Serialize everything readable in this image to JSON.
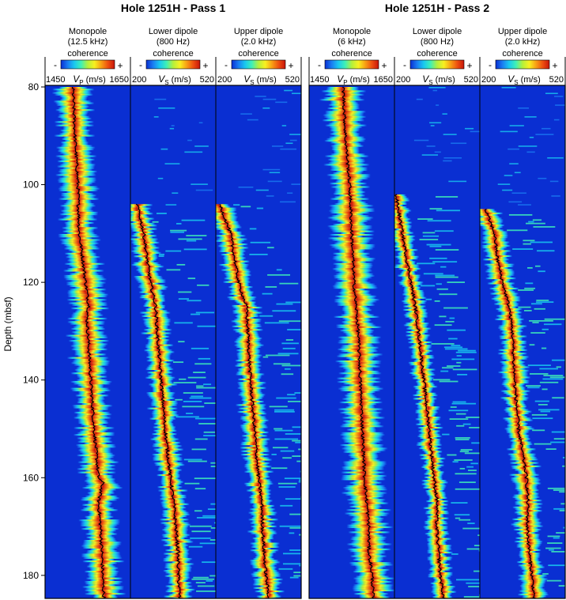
{
  "colors": {
    "background": "#0a2fd2",
    "cold": "#0a2fd2",
    "hot": "#c8140a",
    "velocity_line": "#000000"
  },
  "colormap": [
    "#0a2fd2",
    "#1a7cf2",
    "#19c8f0",
    "#3ef0b8",
    "#b4f03c",
    "#f8f020",
    "#f8a014",
    "#ee5010",
    "#c8140a"
  ],
  "y_axis": {
    "label": "Depth (mbsf)",
    "ticks": [
      80,
      100,
      120,
      140,
      160,
      180
    ],
    "range": [
      80,
      185
    ]
  },
  "groups": [
    {
      "title": "Hole 1251H - Pass 1",
      "tracks": [
        {
          "name_line1": "Monopole",
          "name_line2": "(12.5 kHz)",
          "legend_label": "coherence",
          "minus": "-",
          "plus": "+",
          "axis_min": "1450",
          "axis_var": "V",
          "axis_sub": "P",
          "axis_unit": "(m/s)",
          "axis_max": "1650"
        },
        {
          "name_line1": "Lower dipole",
          "name_line2": "(800 Hz)",
          "legend_label": "coherence",
          "minus": "-",
          "plus": "+",
          "axis_min": "200",
          "axis_var": "V",
          "axis_sub": "S",
          "axis_unit": "(m/s)",
          "axis_max": "520"
        },
        {
          "name_line1": "Upper dipole",
          "name_line2": "(2.0 kHz)",
          "legend_label": "coherence",
          "minus": "-",
          "plus": "+",
          "axis_min": "200",
          "axis_var": "V",
          "axis_sub": "S",
          "axis_unit": "(m/s)",
          "axis_max": "520"
        }
      ]
    },
    {
      "title": "Hole 1251H - Pass 2",
      "tracks": [
        {
          "name_line1": "Monopole",
          "name_line2": "(6 kHz)",
          "legend_label": "coherence",
          "minus": "-",
          "plus": "+",
          "axis_min": "1450",
          "axis_var": "V",
          "axis_sub": "P",
          "axis_unit": "(m/s)",
          "axis_max": "1650"
        },
        {
          "name_line1": "Lower dipole",
          "name_line2": "(800 Hz)",
          "legend_label": "coherence",
          "minus": "-",
          "plus": "+",
          "axis_min": "200",
          "axis_var": "V",
          "axis_sub": "S",
          "axis_unit": "(m/s)",
          "axis_max": "520"
        },
        {
          "name_line1": "Upper dipole",
          "name_line2": "(2.0 kHz)",
          "legend_label": "coherence",
          "minus": "-",
          "plus": "+",
          "axis_min": "200",
          "axis_var": "V",
          "axis_sub": "S",
          "axis_unit": "(m/s)",
          "axis_max": "520"
        }
      ]
    }
  ],
  "chart_data": {
    "type": "heatmap",
    "description_kind": "sonic waveform coherence logs with picked velocity curves",
    "ylabel": "Depth (mbsf)",
    "ylim": [
      80,
      185
    ],
    "y_inverted": true,
    "tracks": [
      {
        "group": "Hole 1251H - Pass 1",
        "name": "Monopole (12.5 kHz)",
        "xlabel": "VP (m/s)",
        "xlim": [
          1450,
          1650
        ],
        "velocity_curve": {
          "depth": [
            80,
            90,
            100,
            110,
            113,
            120,
            125,
            127,
            130,
            140,
            150,
            160,
            161,
            165,
            170,
            175,
            180,
            185
          ],
          "velocity": [
            1515,
            1520,
            1527,
            1530,
            1535,
            1545,
            1553,
            1548,
            1550,
            1557,
            1565,
            1575,
            1585,
            1575,
            1580,
            1583,
            1585,
            1588
          ]
        },
        "coherence_band_halfwidth": 38
      },
      {
        "group": "Hole 1251H - Pass 1",
        "name": "Lower dipole (800 Hz)",
        "xlabel": "VS (m/s)",
        "xlim": [
          200,
          520
        ],
        "velocity_curve": {
          "depth": [
            104,
            110,
            115,
            120,
            125,
            130,
            140,
            150,
            160,
            165,
            170,
            175,
            180,
            185
          ],
          "velocity": [
            225,
            250,
            262,
            275,
            295,
            300,
            315,
            330,
            350,
            362,
            370,
            378,
            380,
            385
          ]
        },
        "coherence_band_halfwidth": 45
      },
      {
        "group": "Hole 1251H - Pass 1",
        "name": "Upper dipole (2.0 kHz)",
        "xlabel": "VS (m/s)",
        "xlim": [
          200,
          520
        ],
        "velocity_curve": {
          "depth": [
            104,
            110,
            115,
            120,
            125,
            130,
            140,
            150,
            160,
            165,
            170,
            175,
            180,
            185
          ],
          "velocity": [
            215,
            255,
            270,
            285,
            315,
            320,
            330,
            345,
            360,
            372,
            375,
            380,
            388,
            400
          ]
        },
        "coherence_band_halfwidth": 45
      },
      {
        "group": "Hole 1251H - Pass 2",
        "name": "Monopole (6 kHz)",
        "xlabel": "VP (m/s)",
        "xlim": [
          1450,
          1650
        ],
        "velocity_curve": {
          "depth": [
            80,
            90,
            100,
            110,
            120,
            125,
            130,
            140,
            150,
            160,
            165,
            170,
            175,
            180,
            185
          ],
          "velocity": [
            1530,
            1535,
            1545,
            1550,
            1555,
            1560,
            1565,
            1570,
            1575,
            1580,
            1585,
            1590,
            1590,
            1598,
            1600
          ]
        },
        "coherence_band_halfwidth": 42
      },
      {
        "group": "Hole 1251H - Pass 2",
        "name": "Lower dipole (800 Hz)",
        "xlabel": "VS (m/s)",
        "xlim": [
          200,
          520
        ],
        "velocity_curve": {
          "depth": [
            102,
            110,
            115,
            120,
            125,
            130,
            140,
            150,
            160,
            165,
            170,
            175,
            180,
            185
          ],
          "velocity": [
            205,
            230,
            245,
            262,
            278,
            290,
            310,
            330,
            348,
            360,
            358,
            365,
            372,
            385
          ]
        },
        "coherence_band_halfwidth": 38
      },
      {
        "group": "Hole 1251H - Pass 2",
        "name": "Upper dipole (2.0 kHz)",
        "xlabel": "VS (m/s)",
        "xlim": [
          200,
          520
        ],
        "velocity_curve": {
          "depth": [
            105,
            110,
            115,
            120,
            125,
            130,
            140,
            150,
            160,
            165,
            170,
            175,
            180,
            185
          ],
          "velocity": [
            220,
            255,
            265,
            285,
            310,
            322,
            330,
            345,
            375,
            380,
            378,
            385,
            395,
            405
          ]
        },
        "coherence_band_halfwidth": 45
      }
    ]
  }
}
